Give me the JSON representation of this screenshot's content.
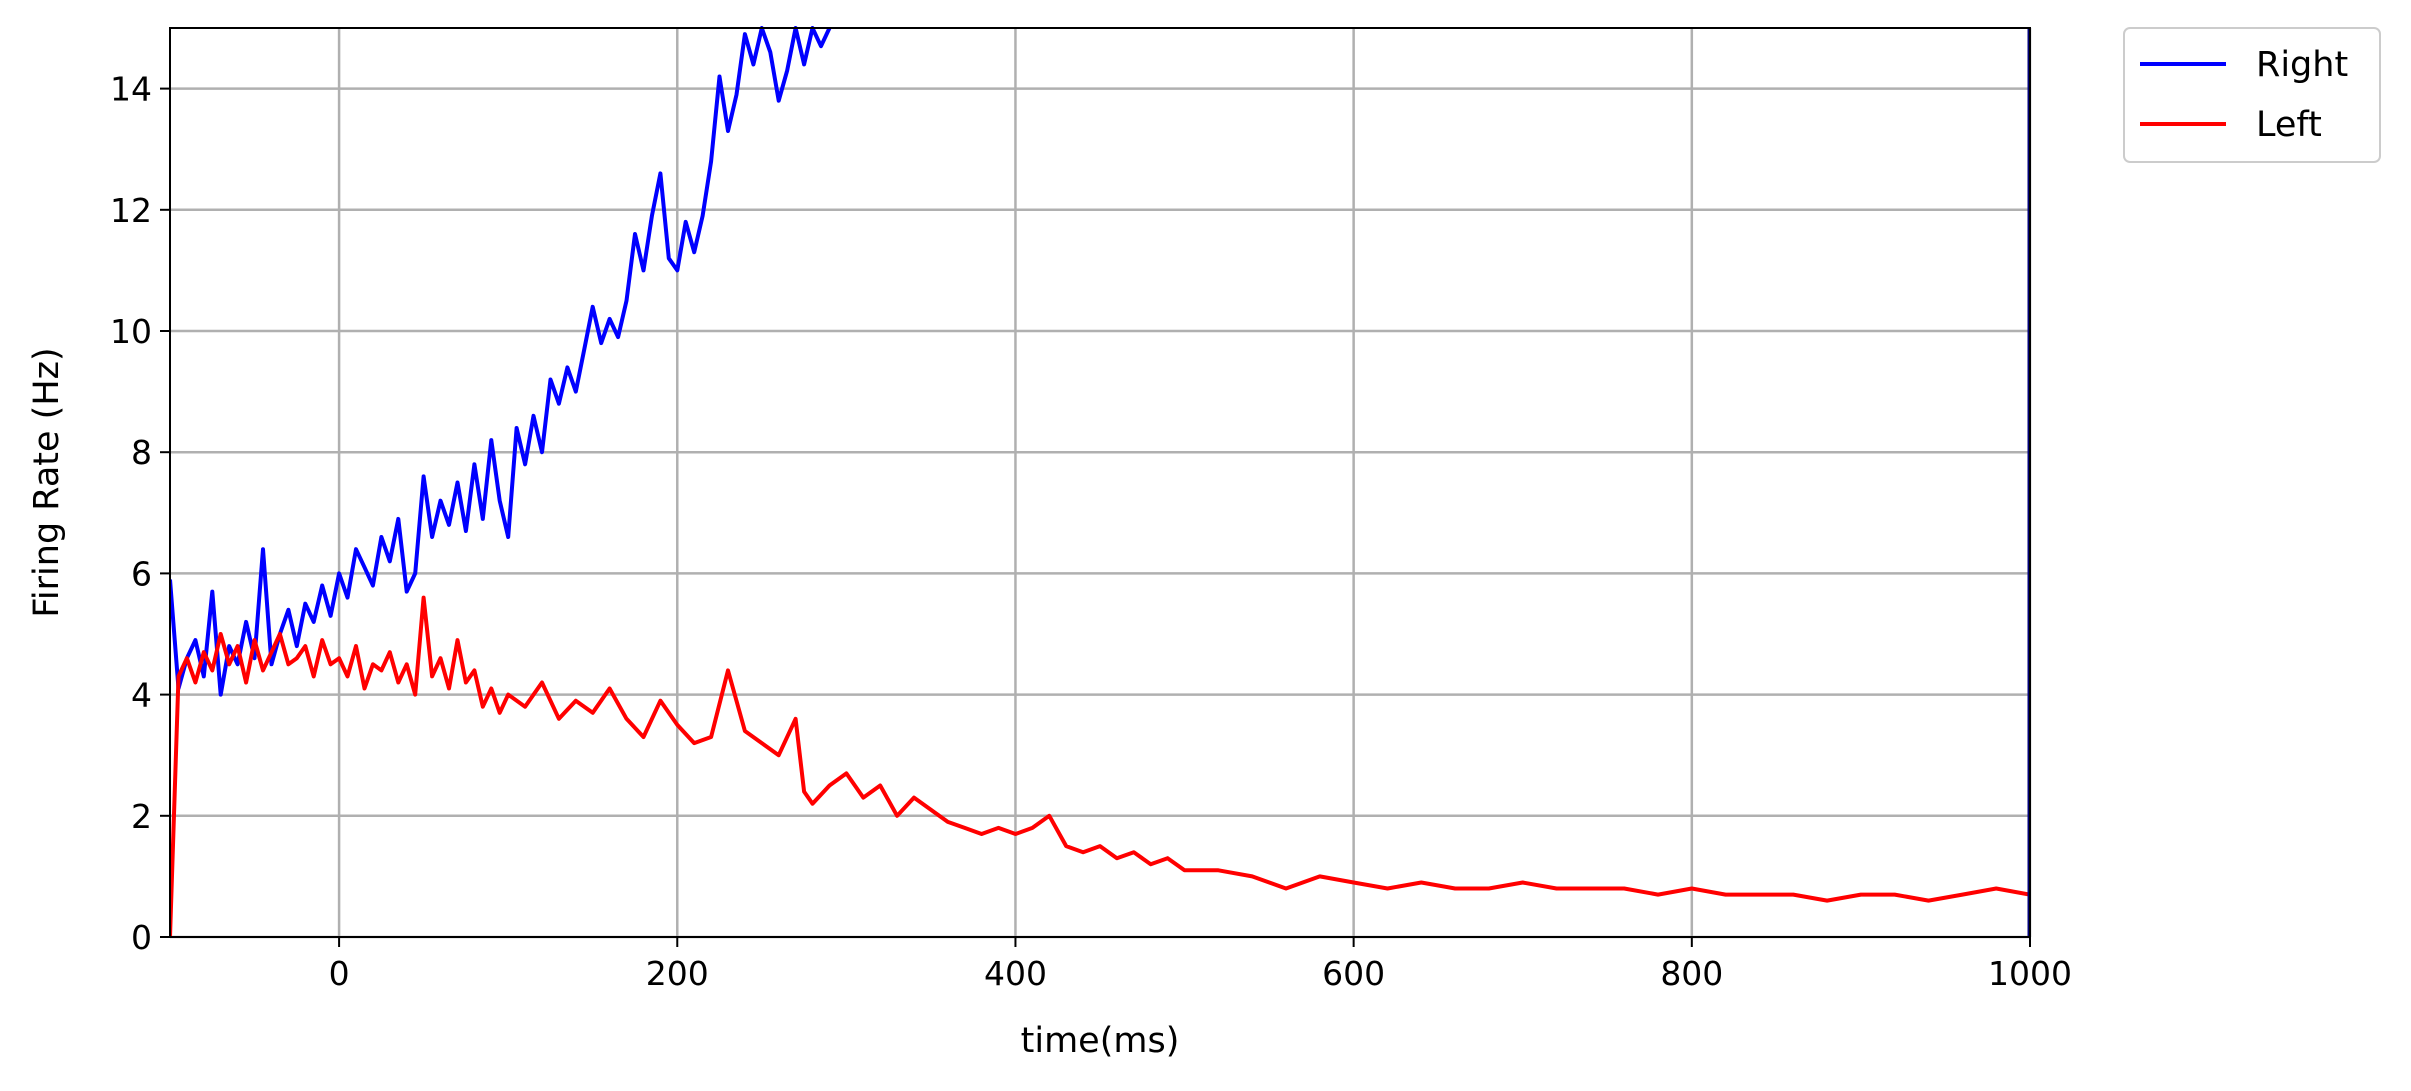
{
  "chart_data": {
    "type": "line",
    "title": "",
    "xlabel": "time(ms)",
    "ylabel": "Firing Rate (Hz)",
    "xlim": [
      -100,
      1000
    ],
    "ylim": [
      0,
      15
    ],
    "grid": true,
    "legend_position": "outside-top-right",
    "x_ticks": [
      0,
      200,
      400,
      600,
      800,
      1000
    ],
    "y_ticks": [
      0,
      2,
      4,
      6,
      8,
      10,
      12,
      14
    ],
    "series": [
      {
        "name": "Right",
        "color": "#0000ff",
        "x": [
          -100,
          -95,
          -90,
          -85,
          -80,
          -75,
          -70,
          -65,
          -60,
          -55,
          -50,
          -45,
          -40,
          -35,
          -30,
          -25,
          -20,
          -15,
          -10,
          -5,
          0,
          5,
          10,
          15,
          20,
          25,
          30,
          35,
          40,
          45,
          50,
          55,
          60,
          65,
          70,
          75,
          80,
          85,
          90,
          95,
          100,
          105,
          110,
          115,
          120,
          125,
          130,
          135,
          140,
          145,
          150,
          155,
          160,
          165,
          170,
          175,
          180,
          185,
          190,
          195,
          200,
          205,
          210,
          215,
          220,
          225,
          230,
          235,
          240,
          245,
          250,
          255,
          260,
          265,
          270,
          275,
          280,
          285,
          290
        ],
        "y": [
          5.9,
          4.1,
          4.6,
          4.9,
          4.3,
          5.7,
          4.0,
          4.8,
          4.5,
          5.2,
          4.6,
          6.4,
          4.5,
          5.0,
          5.4,
          4.8,
          5.5,
          5.2,
          5.8,
          5.3,
          6.0,
          5.6,
          6.4,
          6.1,
          5.8,
          6.6,
          6.2,
          6.9,
          5.7,
          6.0,
          7.6,
          6.6,
          7.2,
          6.8,
          7.5,
          6.7,
          7.8,
          6.9,
          8.2,
          7.2,
          6.6,
          8.4,
          7.8,
          8.6,
          8.0,
          9.2,
          8.8,
          9.4,
          9.0,
          9.7,
          10.4,
          9.8,
          10.2,
          9.9,
          10.5,
          11.6,
          11.0,
          11.9,
          12.6,
          11.2,
          11.0,
          11.8,
          11.3,
          11.9,
          12.8,
          14.2,
          13.3,
          13.9,
          14.9,
          14.4,
          15.0,
          14.6,
          13.8,
          14.3,
          15.0,
          14.4,
          15.0,
          14.7,
          15.0
        ]
      },
      {
        "name": "Left",
        "color": "#ff0000",
        "x": [
          -100,
          -95,
          -90,
          -85,
          -80,
          -75,
          -70,
          -65,
          -60,
          -55,
          -50,
          -45,
          -40,
          -35,
          -30,
          -25,
          -20,
          -15,
          -10,
          -5,
          0,
          5,
          10,
          15,
          20,
          25,
          30,
          35,
          40,
          45,
          50,
          55,
          60,
          65,
          70,
          75,
          80,
          85,
          90,
          95,
          100,
          110,
          120,
          130,
          140,
          150,
          160,
          170,
          180,
          190,
          200,
          210,
          220,
          230,
          240,
          250,
          260,
          270,
          275,
          280,
          290,
          300,
          310,
          320,
          330,
          340,
          350,
          360,
          370,
          380,
          390,
          400,
          410,
          420,
          430,
          440,
          450,
          460,
          470,
          480,
          490,
          500,
          520,
          540,
          560,
          580,
          600,
          620,
          640,
          660,
          680,
          700,
          720,
          740,
          760,
          780,
          800,
          820,
          840,
          860,
          880,
          900,
          920,
          940,
          960,
          980,
          1000
        ],
        "y": [
          0.0,
          4.3,
          4.6,
          4.2,
          4.7,
          4.4,
          5.0,
          4.5,
          4.8,
          4.2,
          4.9,
          4.4,
          4.7,
          5.0,
          4.5,
          4.6,
          4.8,
          4.3,
          4.9,
          4.5,
          4.6,
          4.3,
          4.8,
          4.1,
          4.5,
          4.4,
          4.7,
          4.2,
          4.5,
          4.0,
          5.6,
          4.3,
          4.6,
          4.1,
          4.9,
          4.2,
          4.4,
          3.8,
          4.1,
          3.7,
          4.0,
          3.8,
          4.2,
          3.6,
          3.9,
          3.7,
          4.1,
          3.6,
          3.3,
          3.9,
          3.5,
          3.2,
          3.3,
          4.4,
          3.4,
          3.2,
          3.0,
          3.6,
          2.4,
          2.2,
          2.5,
          2.7,
          2.3,
          2.5,
          2.0,
          2.3,
          2.1,
          1.9,
          1.8,
          1.7,
          1.8,
          1.7,
          1.8,
          2.0,
          1.5,
          1.4,
          1.5,
          1.3,
          1.4,
          1.2,
          1.3,
          1.1,
          1.1,
          1.0,
          0.8,
          1.0,
          0.9,
          0.8,
          0.9,
          0.8,
          0.8,
          0.9,
          0.8,
          0.8,
          0.8,
          0.7,
          0.8,
          0.7,
          0.7,
          0.7,
          0.6,
          0.7,
          0.7,
          0.6,
          0.7,
          0.8,
          0.7
        ]
      }
    ]
  }
}
